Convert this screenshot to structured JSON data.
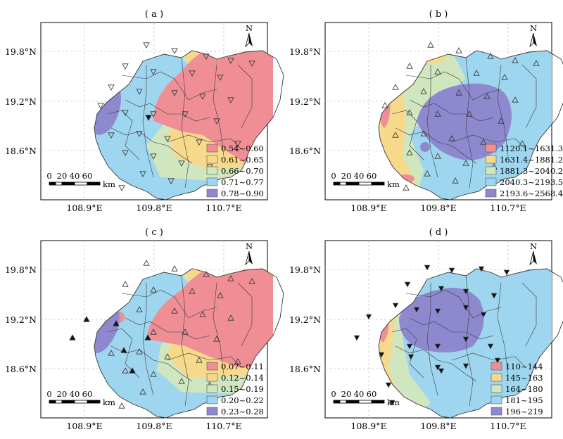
{
  "figure": {
    "axes": {
      "lat_ticks": [
        "19.8°N",
        "19.2°N",
        "18.6°N"
      ],
      "lon_ticks": [
        "108.9°E",
        "109.8°E",
        "110.7°E"
      ]
    },
    "north_label": "N",
    "scale_bar": {
      "ticks": [
        "0",
        "20",
        "40",
        "60"
      ],
      "unit": "km"
    },
    "panels": [
      {
        "label": "( a )",
        "legend": [
          "0.54~0.60",
          "0.61~0.65",
          "0.66~0.70",
          "0.71~0.77",
          "0.78~0.90"
        ],
        "marker": "triangle-down-open"
      },
      {
        "label": "( b )",
        "legend": [
          "1120.1~1631.3",
          "1631.4~1881.2",
          "1881.3~2040.2",
          "2040.3~2193.5",
          "2193.6~2568.4"
        ],
        "marker": "triangle-up-open"
      },
      {
        "label": "( c )",
        "legend": [
          "0.07~0.11",
          "0.12~0.14",
          "0.15~0.19",
          "0.20~0.22",
          "0.23~0.28"
        ],
        "marker": "triangle-up-open"
      },
      {
        "label": "( d )",
        "legend": [
          "110~144",
          "145~163",
          "164~180",
          "181~195",
          "196~219"
        ],
        "marker": "triangle-down-filled"
      }
    ],
    "class_colors": [
      "#ef8f95",
      "#f7d98c",
      "#cfe6bf",
      "#9fd6ef",
      "#8e89cf"
    ]
  }
}
